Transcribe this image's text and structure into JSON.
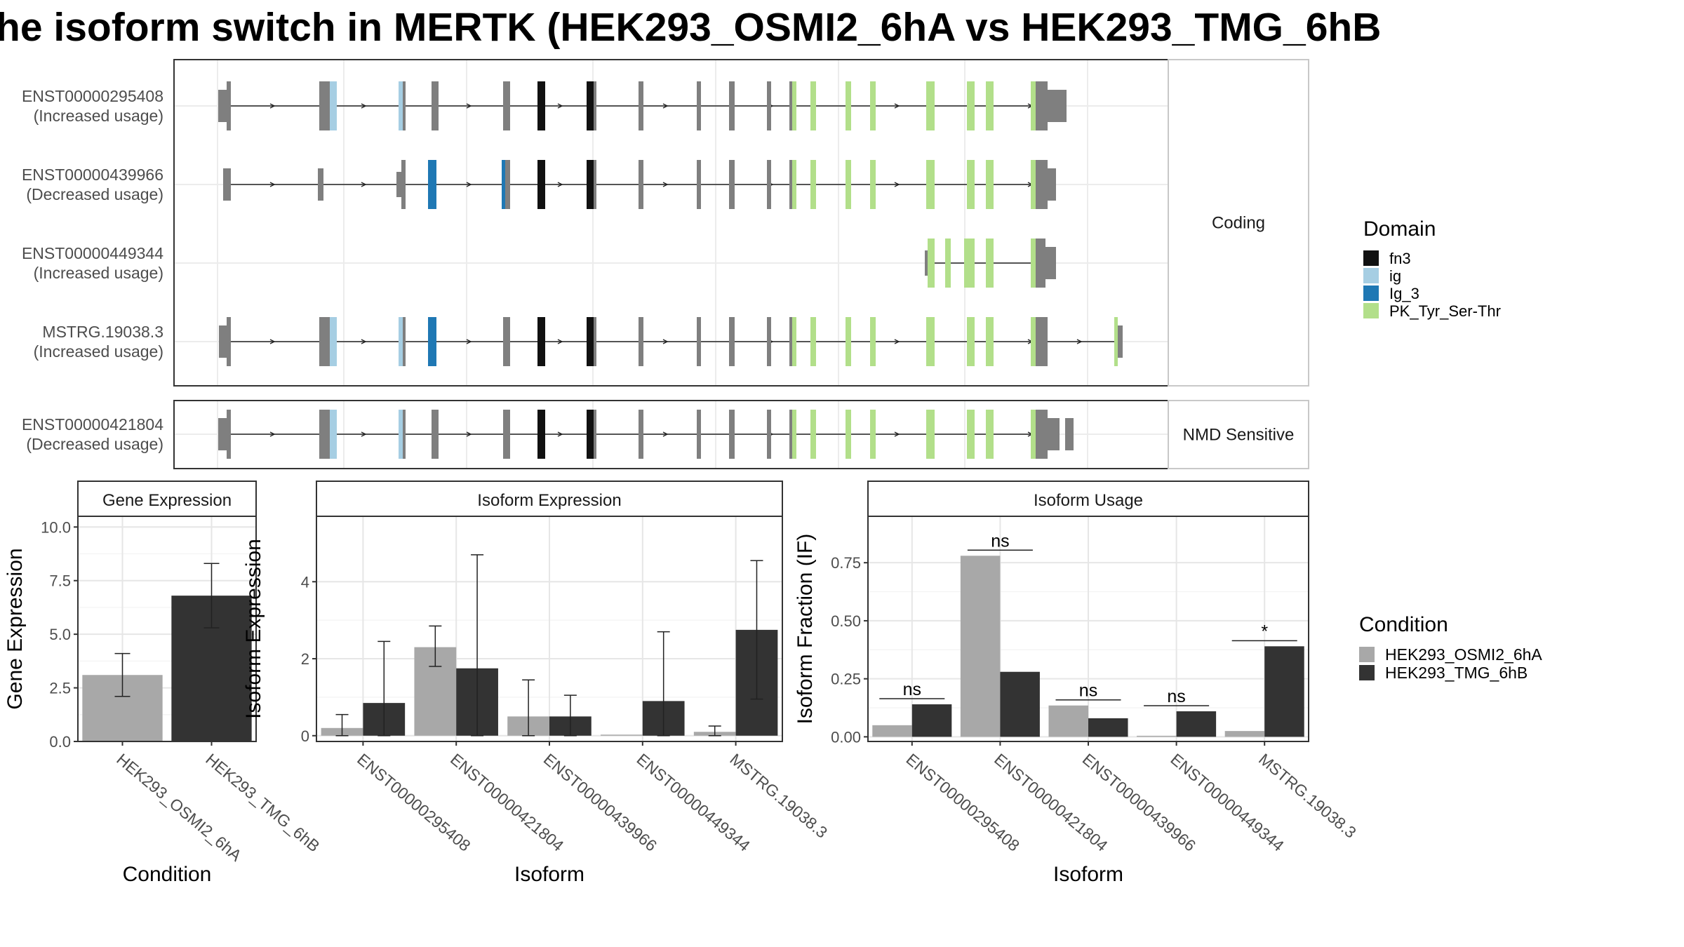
{
  "title": "he isoform switch in MERTK (HEK293_OSMI2_6hA vs HEK293_TMG_6hB",
  "colors": {
    "condition_a": "#a8a8a8",
    "condition_b": "#333333",
    "fn3": "#111111",
    "ig": "#a6cee3",
    "Ig_3": "#1f78b4",
    "PK_Tyr_Ser-Thr": "#b2df8a",
    "exon": "#7f7f7f"
  },
  "structure": {
    "facets": [
      {
        "label": "Coding"
      },
      {
        "label": "NMD Sensitive"
      }
    ],
    "transcripts": [
      {
        "id": "ENST00000295408",
        "usage": "(Increased usage)",
        "facet": 0
      },
      {
        "id": "ENST00000439966",
        "usage": "(Decreased usage)",
        "facet": 0
      },
      {
        "id": "ENST00000449344",
        "usage": "(Increased usage)",
        "facet": 0
      },
      {
        "id": "MSTRG.19038.3",
        "usage": "(Increased usage)",
        "facet": 0
      },
      {
        "id": "ENST00000421804",
        "usage": "(Decreased usage)",
        "facet": 1
      }
    ],
    "legend_title": "Domain",
    "domains": [
      {
        "name": "fn3",
        "color": "#111111"
      },
      {
        "name": "ig",
        "color": "#a6cee3"
      },
      {
        "name": "Ig_3",
        "color": "#1f78b4"
      },
      {
        "name": "PK_Tyr_Ser-Thr",
        "color": "#b2df8a"
      }
    ]
  },
  "condition_legend": {
    "title": "Condition",
    "items": [
      {
        "name": "HEK293_OSMI2_6hA",
        "color": "#a8a8a8"
      },
      {
        "name": "HEK293_TMG_6hB",
        "color": "#333333"
      }
    ]
  },
  "chart_data": [
    {
      "type": "bar",
      "strip": "Gene Expression",
      "xlabel": "Condition",
      "ylabel": "Gene Expression",
      "ylim": [
        0,
        10.5
      ],
      "yticks": [
        0,
        2.5,
        5,
        7.5,
        10
      ],
      "yticklabels": [
        "0.0",
        "2.5",
        "5.0",
        "7.5",
        "10.0"
      ],
      "categories": [
        "HEK293_OSMI2_6hA",
        "HEK293_TMG_6hB"
      ],
      "values": [
        3.1,
        6.8
      ],
      "err_low": [
        2.1,
        5.3
      ],
      "err_high": [
        4.1,
        8.3
      ]
    },
    {
      "type": "bar",
      "strip": "Isoform Expression",
      "xlabel": "Isoform",
      "ylabel": "Isoform Expression",
      "ylim": [
        -0.15,
        5.7
      ],
      "yticks": [
        0,
        2,
        4
      ],
      "yticklabels": [
        "0",
        "2",
        "4"
      ],
      "categories": [
        "ENST00000295408",
        "ENST00000421804",
        "ENST00000439966",
        "ENST00000449344",
        "MSTRG.19038.3"
      ],
      "series": [
        {
          "name": "HEK293_OSMI2_6hA",
          "values": [
            0.2,
            2.3,
            0.5,
            0.0,
            0.1
          ],
          "err_low": [
            0.0,
            1.8,
            0.0,
            0.0,
            0.0
          ],
          "err_high": [
            0.55,
            2.85,
            1.45,
            0.0,
            0.25
          ]
        },
        {
          "name": "HEK293_TMG_6hB",
          "values": [
            0.85,
            1.75,
            0.5,
            0.9,
            2.75
          ],
          "err_low": [
            0.0,
            0.0,
            0.0,
            0.0,
            0.95
          ],
          "err_high": [
            2.45,
            4.7,
            1.05,
            2.7,
            4.55
          ]
        }
      ]
    },
    {
      "type": "bar",
      "strip": "Isoform Usage",
      "xlabel": "Isoform",
      "ylabel": "Isoform Fraction (IF)",
      "ylim": [
        -0.02,
        0.95
      ],
      "yticks": [
        0,
        0.25,
        0.5,
        0.75
      ],
      "yticklabels": [
        "0.00",
        "0.25",
        "0.50",
        "0.75"
      ],
      "categories": [
        "ENST00000295408",
        "ENST00000421804",
        "ENST00000439966",
        "ENST00000449344",
        "MSTRG.19038.3"
      ],
      "series": [
        {
          "name": "HEK293_OSMI2_6hA",
          "values": [
            0.05,
            0.78,
            0.135,
            0.0,
            0.025
          ]
        },
        {
          "name": "HEK293_TMG_6hB",
          "values": [
            0.14,
            0.28,
            0.08,
            0.11,
            0.39
          ]
        }
      ],
      "significance": [
        "ns",
        "ns",
        "ns",
        "ns",
        "*"
      ]
    }
  ]
}
